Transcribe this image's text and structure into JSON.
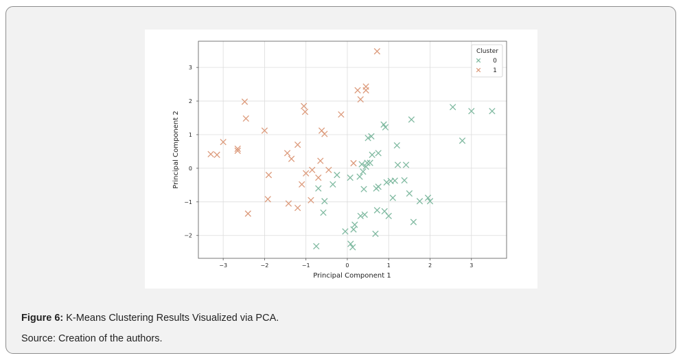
{
  "figure": {
    "caption_label": "Figure 6:",
    "caption_text": " K-Means Clustering Results Visualized via PCA.",
    "source": "Source: Creation of the authors."
  },
  "colors": {
    "panel_bg": "#f2f2f2",
    "cluster_0": "#7fb9a0",
    "cluster_1": "#dc9a7b",
    "grid": "#dcdcdc"
  },
  "chart_data": {
    "type": "scatter",
    "title": "",
    "xlabel": "Principal Component 1",
    "ylabel": "Principal Component 2",
    "xlim": [
      -3.6,
      3.85
    ],
    "ylim": [
      -2.68,
      3.78
    ],
    "xticks": [
      -3,
      -2,
      -1,
      0,
      1,
      2,
      3
    ],
    "yticks": [
      -2,
      -1,
      0,
      1,
      2,
      3
    ],
    "xtick_labels": [
      "−3",
      "−2",
      "−1",
      "0",
      "1",
      "2",
      "3"
    ],
    "ytick_labels": [
      "−2",
      "−1",
      "0",
      "1",
      "2",
      "3"
    ],
    "grid": true,
    "marker": "x",
    "legend": {
      "title": "Cluster",
      "location": "top-right",
      "entries": [
        "0",
        "1"
      ]
    },
    "series": [
      {
        "name": "0",
        "points": [
          [
            -0.75,
            -2.32
          ],
          [
            -0.58,
            -1.32
          ],
          [
            -0.55,
            -0.98
          ],
          [
            -0.7,
            -0.6
          ],
          [
            -0.35,
            -0.48
          ],
          [
            -0.25,
            -0.2
          ],
          [
            0.07,
            -0.28
          ],
          [
            0.3,
            -0.25
          ],
          [
            0.38,
            -0.1
          ],
          [
            0.35,
            0.12
          ],
          [
            0.45,
            0.05
          ],
          [
            0.48,
            0.16
          ],
          [
            0.55,
            0.16
          ],
          [
            0.6,
            0.4
          ],
          [
            0.75,
            0.45
          ],
          [
            0.5,
            0.9
          ],
          [
            0.58,
            0.95
          ],
          [
            0.88,
            1.3
          ],
          [
            0.92,
            1.22
          ],
          [
            1.2,
            0.68
          ],
          [
            1.22,
            0.1
          ],
          [
            1.42,
            0.1
          ],
          [
            0.4,
            -0.62
          ],
          [
            0.7,
            -0.6
          ],
          [
            0.75,
            -0.55
          ],
          [
            0.95,
            -0.42
          ],
          [
            1.05,
            -0.38
          ],
          [
            1.15,
            -0.37
          ],
          [
            1.38,
            -0.36
          ],
          [
            1.5,
            -0.75
          ],
          [
            1.1,
            -0.88
          ],
          [
            1.75,
            -0.98
          ],
          [
            1.95,
            -0.88
          ],
          [
            2.0,
            -0.98
          ],
          [
            0.72,
            -1.25
          ],
          [
            0.9,
            -1.28
          ],
          [
            1.0,
            -1.42
          ],
          [
            0.32,
            -1.42
          ],
          [
            0.42,
            -1.38
          ],
          [
            0.18,
            -1.68
          ],
          [
            0.15,
            -1.82
          ],
          [
            -0.05,
            -1.88
          ],
          [
            0.08,
            -2.25
          ],
          [
            0.13,
            -2.35
          ],
          [
            0.68,
            -1.95
          ],
          [
            1.6,
            -1.6
          ],
          [
            1.55,
            1.45
          ],
          [
            2.55,
            1.82
          ],
          [
            3.0,
            1.7
          ],
          [
            2.78,
            0.82
          ],
          [
            3.5,
            1.7
          ]
        ]
      },
      {
        "name": "1",
        "points": [
          [
            -3.3,
            0.42
          ],
          [
            -3.15,
            0.4
          ],
          [
            -3.0,
            0.78
          ],
          [
            -2.65,
            0.58
          ],
          [
            -2.65,
            0.52
          ],
          [
            -2.48,
            1.98
          ],
          [
            -2.45,
            1.48
          ],
          [
            -2.4,
            -1.35
          ],
          [
            -2.0,
            1.12
          ],
          [
            -1.9,
            -0.2
          ],
          [
            -1.92,
            -0.92
          ],
          [
            -1.45,
            0.45
          ],
          [
            -1.35,
            0.28
          ],
          [
            -1.42,
            -1.05
          ],
          [
            -1.2,
            0.7
          ],
          [
            -1.2,
            -1.18
          ],
          [
            -1.1,
            -0.48
          ],
          [
            -1.05,
            1.85
          ],
          [
            -1.02,
            1.68
          ],
          [
            -1.0,
            -0.15
          ],
          [
            -0.85,
            -0.05
          ],
          [
            -0.88,
            -0.95
          ],
          [
            -0.7,
            -0.28
          ],
          [
            -0.65,
            0.22
          ],
          [
            -0.62,
            1.12
          ],
          [
            -0.55,
            1.02
          ],
          [
            -0.45,
            -0.05
          ],
          [
            -0.15,
            1.6
          ],
          [
            0.15,
            0.15
          ],
          [
            0.25,
            2.32
          ],
          [
            0.32,
            2.05
          ],
          [
            0.45,
            2.32
          ],
          [
            0.45,
            2.43
          ],
          [
            0.72,
            3.48
          ]
        ]
      }
    ]
  }
}
